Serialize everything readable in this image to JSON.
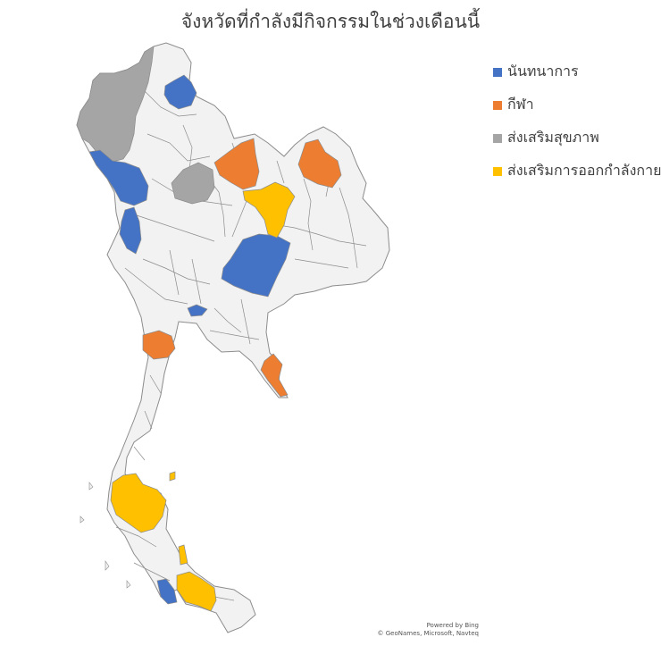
{
  "title": "จังหวัดที่กำลังมีกิจกรรมในช่วงเดือนนี้",
  "legend": [
    {
      "label": "นันทนาการ",
      "color": "#4472C4"
    },
    {
      "label": "กีฬา",
      "color": "#ED7D31"
    },
    {
      "label": "ส่งเสริมสุขภาพ",
      "color": "#A5A5A5"
    },
    {
      "label": "ส่งเสริมการออกกำลังกาย",
      "color": "#FFC000"
    }
  ],
  "credit": {
    "line1": "Powered by Bing",
    "line2": "© GeoNames, Microsoft, Navteq"
  },
  "colors": {
    "land": "#F2F2F2",
    "border": "#8C8C8C"
  }
}
